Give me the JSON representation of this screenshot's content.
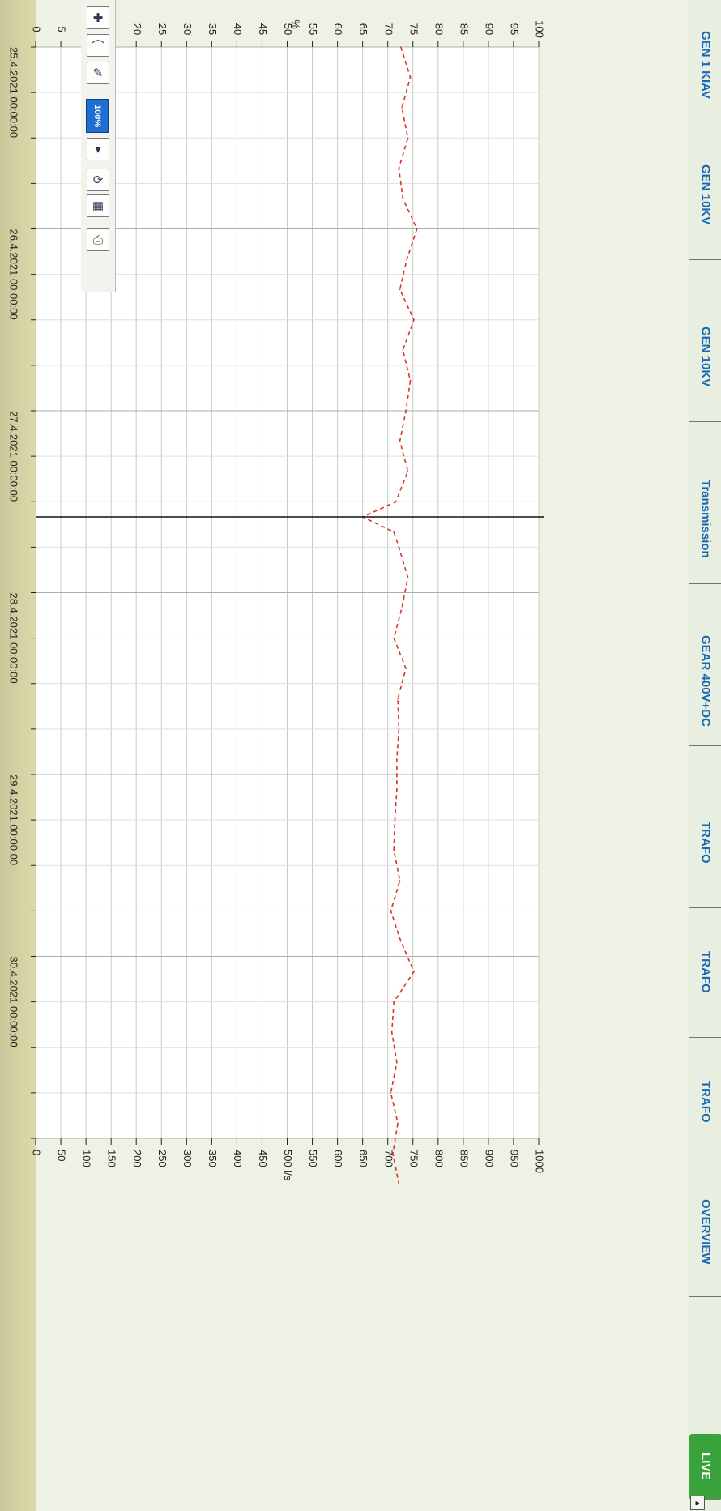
{
  "header": {
    "tabs": [
      {
        "label": "GEN 1 KIAV"
      },
      {
        "label": "GEN 10KV"
      },
      {
        "label": "Transmission"
      },
      {
        "label": "GEAR 400V+DC"
      },
      {
        "label": "TRAFO"
      },
      {
        "label": "TRAFO"
      },
      {
        "label": "TRAFO"
      },
      {
        "label": "OVERVIEW"
      },
      {
        "label": "LIVE"
      }
    ]
  },
  "toolbar": {
    "zoom_label": "100%",
    "zoom_dropdown_symbol": "▾",
    "icons": [
      "cursor-icon",
      "trend-icon",
      "color-trend-icon",
      "refresh-icon",
      "table-icon",
      "print-icon"
    ]
  },
  "chart_data": {
    "type": "line",
    "left_axis": {
      "label": "%",
      "range": [
        0,
        100
      ],
      "ticks": [
        "0",
        "5",
        "10",
        "15",
        "20",
        "25",
        "30",
        "35",
        "40",
        "45",
        "50",
        "55",
        "60",
        "65",
        "70",
        "75",
        "80",
        "85",
        "90",
        "95",
        "100"
      ]
    },
    "right_axis": {
      "label": "l/s",
      "range": [
        0,
        1000
      ],
      "ticks": [
        "0",
        "50",
        "100",
        "150",
        "200",
        "250",
        "300",
        "350",
        "400",
        "450",
        "500 l/s",
        "550",
        "600",
        "650",
        "700",
        "750",
        "800",
        "850",
        "900",
        "950",
        "1000"
      ]
    },
    "x_axis": {
      "range": [
        "25.4.2021 00:00:00",
        "1.5.2021 00:00:00"
      ],
      "labels": [
        "25.4.2021 00:00:00",
        "26.4.2021 00:00:00",
        "27.4.2021 00:00:00",
        "28.4.2021 00:00:00",
        "29.4.2021 00:00:00",
        "30.4.2021 00:00:00"
      ]
    },
    "cursor_time": "27.4.2021 14:00:00",
    "series": [
      {
        "color": "#d9332b",
        "style": "dashed",
        "unit": "l/s",
        "x_hours": [
          0,
          4,
          8,
          12,
          16,
          20,
          24,
          28,
          32,
          36,
          40,
          44,
          48,
          52,
          56,
          60,
          62,
          64,
          66,
          70,
          74,
          78,
          82,
          86,
          90,
          94,
          98,
          102,
          106,
          110,
          114,
          118,
          122,
          126,
          130,
          134,
          138,
          142,
          146,
          150
        ],
        "values": [
          726,
          745,
          728,
          740,
          722,
          730,
          758,
          738,
          724,
          752,
          730,
          745,
          736,
          724,
          740,
          716,
          650,
          712,
          722,
          740,
          728,
          712,
          736,
          720,
          722,
          718,
          718,
          714,
          712,
          724,
          706,
          726,
          752,
          712,
          708,
          718,
          706,
          720,
          710,
          722
        ]
      }
    ],
    "grid": true,
    "legend": "none"
  },
  "colors": {
    "plot_background": "#ffffff",
    "grid": "#c7ccc7",
    "series": "#d9332b",
    "cursor": "#111111",
    "header_text": "#1769b5",
    "active_tab": "#3aa23a"
  },
  "navigation": {
    "scroll_symbol": "▸"
  }
}
